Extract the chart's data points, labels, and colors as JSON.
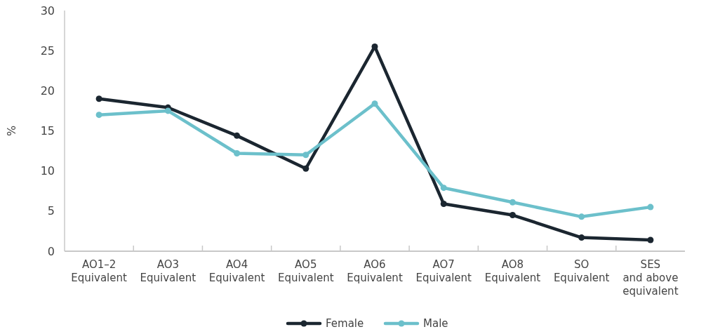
{
  "chart_data": {
    "type": "line",
    "ylabel": "%",
    "categories": [
      "AO1–2\nEquivalent",
      "AO3\nEquivalent",
      "AO4\nEquivalent",
      "AO5\nEquivalent",
      "AO6\nEquivalent",
      "AO7\nEquivalent",
      "AO8\nEquivalent",
      "SO\nEquivalent",
      "SES\nand above\nequivalent"
    ],
    "series": [
      {
        "name": "Female",
        "color": "#1b2630",
        "values": [
          19.0,
          17.9,
          14.4,
          10.3,
          25.5,
          5.9,
          4.5,
          1.7,
          1.4
        ]
      },
      {
        "name": "Male",
        "color": "#6cc0cb",
        "values": [
          17.0,
          17.5,
          12.2,
          12.0,
          18.4,
          7.9,
          6.1,
          4.3,
          5.5
        ]
      }
    ],
    "ylim": [
      0,
      30
    ],
    "yticks": [
      0,
      5,
      10,
      15,
      20,
      25,
      30
    ],
    "grid": false,
    "legend": "bottom",
    "marker": "circle",
    "line_style": "solid"
  }
}
